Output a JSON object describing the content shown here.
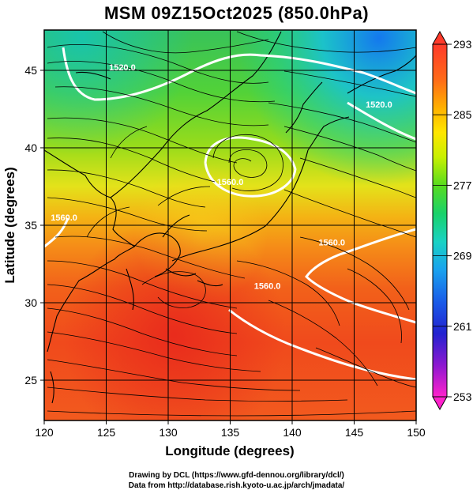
{
  "title": "MSM 09Z15Oct2025 (850.0hPa)",
  "map": {
    "xlabel": "Longitude (degrees)",
    "ylabel": "Latitude  (degrees)",
    "xlim": [
      120,
      150
    ],
    "ylim": [
      22.4,
      47.6
    ],
    "x_ticks": [
      120,
      125,
      130,
      135,
      140,
      145,
      150
    ],
    "x_tick_labels": [
      "120",
      "125",
      "130",
      "135",
      "140",
      "145",
      "150"
    ],
    "y_ticks": [
      25,
      30,
      35,
      40,
      45
    ],
    "y_tick_labels": [
      "25",
      "30",
      "35",
      "40",
      "45"
    ],
    "grid": true,
    "contour_labels": [
      {
        "text": "1520.0",
        "lon": 126.3,
        "lat": 45.0
      },
      {
        "text": "1520.0",
        "lon": 147.0,
        "lat": 42.6
      },
      {
        "text": "1560.0",
        "lon": 135.0,
        "lat": 37.6
      },
      {
        "text": "1560.0",
        "lon": 143.2,
        "lat": 33.7
      },
      {
        "text": "1560.0",
        "lon": 121.6,
        "lat": 35.3
      },
      {
        "text": "1560.0",
        "lon": 138.0,
        "lat": 30.9
      }
    ]
  },
  "colorbar": {
    "min": 253,
    "max": 293,
    "labels": [
      "293",
      "285",
      "277",
      "269",
      "261",
      "253"
    ],
    "label_values": [
      293,
      285,
      277,
      269,
      261,
      253
    ]
  },
  "credits": {
    "line1": "Drawing by DCL (https://www.gfd-dennou.org/library/dcl/)",
    "line2": "Data from http://database.rish.kyoto-u.ac.jp/arch/jmadata/"
  }
}
